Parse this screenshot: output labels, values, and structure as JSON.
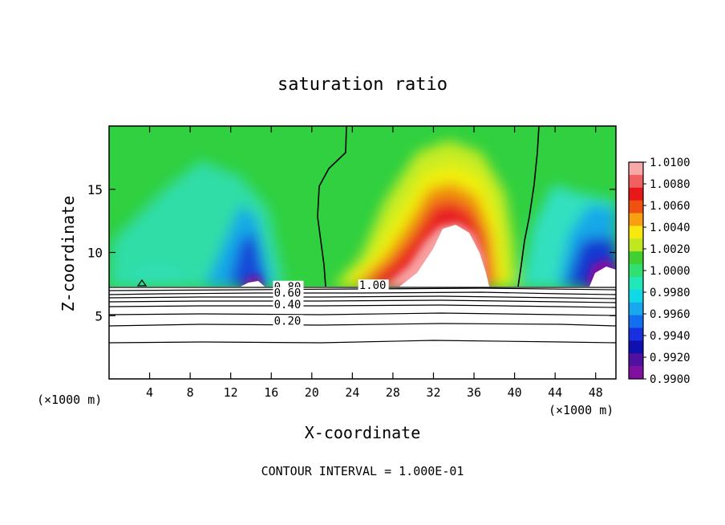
{
  "chart_data": {
    "type": "heatmap",
    "title": "saturation ratio",
    "xlabel": "X-coordinate",
    "ylabel": "Z-coordinate",
    "x_unit": "(×1000 m)",
    "x_ticks": [
      4,
      8,
      12,
      16,
      20,
      24,
      28,
      32,
      36,
      40,
      44,
      48
    ],
    "y_ticks": [
      5,
      10,
      15
    ],
    "xlim": [
      0,
      50
    ],
    "ylim": [
      0,
      20
    ],
    "contour_interval_label": "CONTOUR INTERVAL = 1.000E-01",
    "colorbar": {
      "ticks": [
        "1.0100",
        "1.0080",
        "1.0060",
        "1.0040",
        "1.0020",
        "1.0000",
        "0.9980",
        "0.9960",
        "0.9940",
        "0.9920",
        "0.9900"
      ],
      "range": [
        0.99,
        1.01
      ]
    },
    "contour_labels": [
      {
        "text": "1.00",
        "x": 26,
        "z": 7.1
      },
      {
        "text": "0.80",
        "x": 17.6,
        "z": 7.0
      },
      {
        "text": "0.60",
        "x": 17.6,
        "z": 6.5
      },
      {
        "text": "0.40",
        "x": 17.6,
        "z": 5.6
      },
      {
        "text": "0.20",
        "x": 17.6,
        "z": 4.3
      }
    ]
  }
}
